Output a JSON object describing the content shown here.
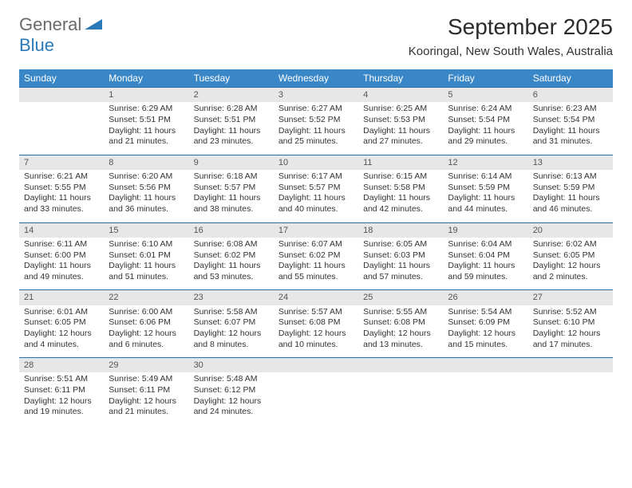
{
  "brand": {
    "gray": "General",
    "blue": "Blue"
  },
  "title": "September 2025",
  "location": "Kooringal, New South Wales, Australia",
  "colors": {
    "header_bg": "#3a87c7",
    "header_text": "#ffffff",
    "daynum_bg": "#e7e7e7",
    "daynum_text": "#555555",
    "row_border": "#2a6fa3",
    "body_text": "#333333",
    "logo_gray": "#6a6a6a",
    "logo_blue": "#2a7ab8",
    "background": "#ffffff"
  },
  "typography": {
    "title_fontsize": 28,
    "location_fontsize": 15,
    "dayheader_fontsize": 12,
    "daynum_fontsize": 11,
    "cell_fontsize": 10.5,
    "logo_fontsize": 22
  },
  "day_headers": [
    "Sunday",
    "Monday",
    "Tuesday",
    "Wednesday",
    "Thursday",
    "Friday",
    "Saturday"
  ],
  "weeks": [
    [
      null,
      {
        "n": "1",
        "sr": "Sunrise: 6:29 AM",
        "ss": "Sunset: 5:51 PM",
        "dl": "Daylight: 11 hours and 21 minutes."
      },
      {
        "n": "2",
        "sr": "Sunrise: 6:28 AM",
        "ss": "Sunset: 5:51 PM",
        "dl": "Daylight: 11 hours and 23 minutes."
      },
      {
        "n": "3",
        "sr": "Sunrise: 6:27 AM",
        "ss": "Sunset: 5:52 PM",
        "dl": "Daylight: 11 hours and 25 minutes."
      },
      {
        "n": "4",
        "sr": "Sunrise: 6:25 AM",
        "ss": "Sunset: 5:53 PM",
        "dl": "Daylight: 11 hours and 27 minutes."
      },
      {
        "n": "5",
        "sr": "Sunrise: 6:24 AM",
        "ss": "Sunset: 5:54 PM",
        "dl": "Daylight: 11 hours and 29 minutes."
      },
      {
        "n": "6",
        "sr": "Sunrise: 6:23 AM",
        "ss": "Sunset: 5:54 PM",
        "dl": "Daylight: 11 hours and 31 minutes."
      }
    ],
    [
      {
        "n": "7",
        "sr": "Sunrise: 6:21 AM",
        "ss": "Sunset: 5:55 PM",
        "dl": "Daylight: 11 hours and 33 minutes."
      },
      {
        "n": "8",
        "sr": "Sunrise: 6:20 AM",
        "ss": "Sunset: 5:56 PM",
        "dl": "Daylight: 11 hours and 36 minutes."
      },
      {
        "n": "9",
        "sr": "Sunrise: 6:18 AM",
        "ss": "Sunset: 5:57 PM",
        "dl": "Daylight: 11 hours and 38 minutes."
      },
      {
        "n": "10",
        "sr": "Sunrise: 6:17 AM",
        "ss": "Sunset: 5:57 PM",
        "dl": "Daylight: 11 hours and 40 minutes."
      },
      {
        "n": "11",
        "sr": "Sunrise: 6:15 AM",
        "ss": "Sunset: 5:58 PM",
        "dl": "Daylight: 11 hours and 42 minutes."
      },
      {
        "n": "12",
        "sr": "Sunrise: 6:14 AM",
        "ss": "Sunset: 5:59 PM",
        "dl": "Daylight: 11 hours and 44 minutes."
      },
      {
        "n": "13",
        "sr": "Sunrise: 6:13 AM",
        "ss": "Sunset: 5:59 PM",
        "dl": "Daylight: 11 hours and 46 minutes."
      }
    ],
    [
      {
        "n": "14",
        "sr": "Sunrise: 6:11 AM",
        "ss": "Sunset: 6:00 PM",
        "dl": "Daylight: 11 hours and 49 minutes."
      },
      {
        "n": "15",
        "sr": "Sunrise: 6:10 AM",
        "ss": "Sunset: 6:01 PM",
        "dl": "Daylight: 11 hours and 51 minutes."
      },
      {
        "n": "16",
        "sr": "Sunrise: 6:08 AM",
        "ss": "Sunset: 6:02 PM",
        "dl": "Daylight: 11 hours and 53 minutes."
      },
      {
        "n": "17",
        "sr": "Sunrise: 6:07 AM",
        "ss": "Sunset: 6:02 PM",
        "dl": "Daylight: 11 hours and 55 minutes."
      },
      {
        "n": "18",
        "sr": "Sunrise: 6:05 AM",
        "ss": "Sunset: 6:03 PM",
        "dl": "Daylight: 11 hours and 57 minutes."
      },
      {
        "n": "19",
        "sr": "Sunrise: 6:04 AM",
        "ss": "Sunset: 6:04 PM",
        "dl": "Daylight: 11 hours and 59 minutes."
      },
      {
        "n": "20",
        "sr": "Sunrise: 6:02 AM",
        "ss": "Sunset: 6:05 PM",
        "dl": "Daylight: 12 hours and 2 minutes."
      }
    ],
    [
      {
        "n": "21",
        "sr": "Sunrise: 6:01 AM",
        "ss": "Sunset: 6:05 PM",
        "dl": "Daylight: 12 hours and 4 minutes."
      },
      {
        "n": "22",
        "sr": "Sunrise: 6:00 AM",
        "ss": "Sunset: 6:06 PM",
        "dl": "Daylight: 12 hours and 6 minutes."
      },
      {
        "n": "23",
        "sr": "Sunrise: 5:58 AM",
        "ss": "Sunset: 6:07 PM",
        "dl": "Daylight: 12 hours and 8 minutes."
      },
      {
        "n": "24",
        "sr": "Sunrise: 5:57 AM",
        "ss": "Sunset: 6:08 PM",
        "dl": "Daylight: 12 hours and 10 minutes."
      },
      {
        "n": "25",
        "sr": "Sunrise: 5:55 AM",
        "ss": "Sunset: 6:08 PM",
        "dl": "Daylight: 12 hours and 13 minutes."
      },
      {
        "n": "26",
        "sr": "Sunrise: 5:54 AM",
        "ss": "Sunset: 6:09 PM",
        "dl": "Daylight: 12 hours and 15 minutes."
      },
      {
        "n": "27",
        "sr": "Sunrise: 5:52 AM",
        "ss": "Sunset: 6:10 PM",
        "dl": "Daylight: 12 hours and 17 minutes."
      }
    ],
    [
      {
        "n": "28",
        "sr": "Sunrise: 5:51 AM",
        "ss": "Sunset: 6:11 PM",
        "dl": "Daylight: 12 hours and 19 minutes."
      },
      {
        "n": "29",
        "sr": "Sunrise: 5:49 AM",
        "ss": "Sunset: 6:11 PM",
        "dl": "Daylight: 12 hours and 21 minutes."
      },
      {
        "n": "30",
        "sr": "Sunrise: 5:48 AM",
        "ss": "Sunset: 6:12 PM",
        "dl": "Daylight: 12 hours and 24 minutes."
      },
      null,
      null,
      null,
      null
    ]
  ]
}
